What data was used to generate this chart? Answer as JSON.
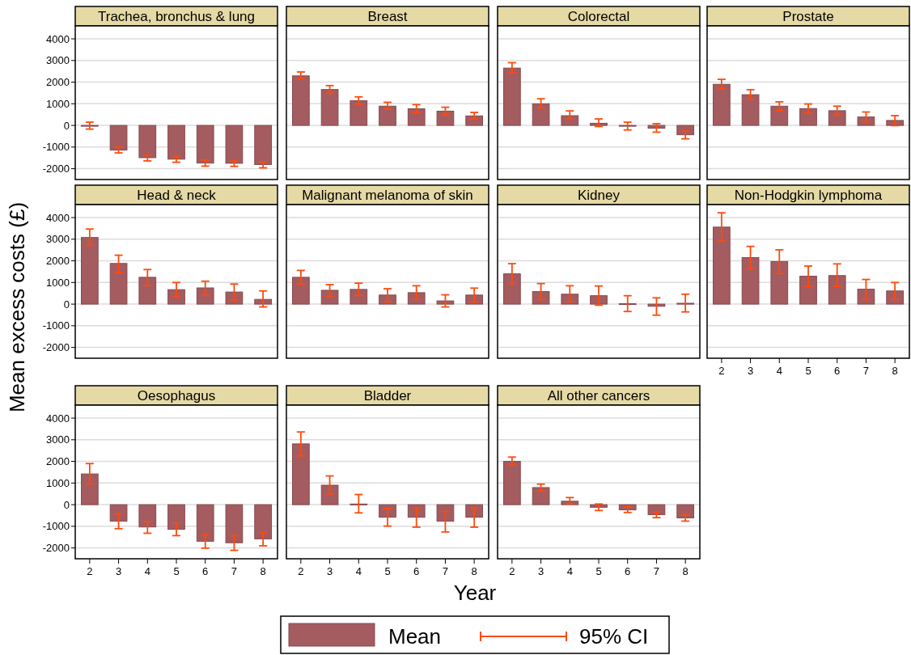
{
  "chart_data": [
    {
      "type": "bar",
      "title": "Trachea, bronchus & lung",
      "ylabel": "Mean excess costs (£)",
      "legend": "bottom",
      "annotations": [
        "95% CI"
      ],
      "categories": [
        "2",
        "3",
        "4",
        "5",
        "6",
        "7",
        "8"
      ],
      "series": [
        {
          "name": "Mean",
          "color": "#a45c61",
          "values": [
            -20,
            -1140,
            -1490,
            -1560,
            -1740,
            -1750,
            -1810
          ],
          "errors": [
            [
              -170,
              150
            ],
            [
              -1270,
              -1000
            ],
            [
              -1640,
              -1370
            ],
            [
              -1700,
              -1440
            ],
            [
              -1880,
              -1600
            ],
            [
              -1890,
              -1640
            ],
            [
              -1960,
              -1680
            ]
          ]
        }
      ],
      "ylim": [
        -2500,
        4600
      ],
      "yticks": [
        -2000,
        -1000,
        0,
        1000,
        2000,
        3000,
        4000
      ],
      "grid": "y",
      "tick_labels": "y"
    },
    {
      "type": "bar",
      "title": "Breast",
      "categories": [
        "2",
        "3",
        "4",
        "5",
        "6",
        "7",
        "8"
      ],
      "series": [
        {
          "color": "#a45c61",
          "values": [
            2290,
            1660,
            1140,
            890,
            770,
            660,
            440
          ],
          "errors": [
            [
              2150,
              2470
            ],
            [
              1490,
              1840
            ],
            [
              990,
              1320
            ],
            [
              750,
              1070
            ],
            [
              600,
              960
            ],
            [
              490,
              840
            ],
            [
              290,
              600
            ]
          ]
        }
      ],
      "ylim": [
        -2500,
        4600
      ],
      "yticks": [
        -2000,
        -1000,
        0,
        1000,
        2000,
        3000,
        4000
      ],
      "grid": "y",
      "tick_labels": false
    },
    {
      "type": "bar",
      "title": "Colorectal",
      "categories": [
        "2",
        "3",
        "4",
        "5",
        "6",
        "7",
        "8"
      ],
      "series": [
        {
          "color": "#a45c61",
          "values": [
            2650,
            1000,
            450,
            100,
            -10,
            -130,
            -430
          ],
          "errors": [
            [
              2430,
              2900
            ],
            [
              820,
              1230
            ],
            [
              290,
              670
            ],
            [
              -50,
              300
            ],
            [
              -210,
              150
            ],
            [
              -310,
              80
            ],
            [
              -620,
              -260
            ]
          ]
        }
      ],
      "ylim": [
        -2500,
        4600
      ],
      "yticks": [
        -2000,
        -1000,
        0,
        1000,
        2000,
        3000,
        4000
      ],
      "grid": "y",
      "tick_labels": false
    },
    {
      "type": "bar",
      "title": "Prostate",
      "categories": [
        "2",
        "3",
        "4",
        "5",
        "6",
        "7",
        "8"
      ],
      "series": [
        {
          "color": "#a45c61",
          "values": [
            1900,
            1420,
            890,
            780,
            680,
            390,
            230
          ],
          "errors": [
            [
              1700,
              2130
            ],
            [
              1210,
              1650
            ],
            [
              680,
              1090
            ],
            [
              570,
              990
            ],
            [
              480,
              890
            ],
            [
              180,
              620
            ],
            [
              -10,
              450
            ]
          ]
        }
      ],
      "ylim": [
        -2500,
        4600
      ],
      "yticks": [
        -2000,
        -1000,
        0,
        1000,
        2000,
        3000,
        4000
      ],
      "grid": "y",
      "tick_labels": false
    },
    {
      "type": "bar",
      "title": "Head & neck",
      "categories": [
        "2",
        "3",
        "4",
        "5",
        "6",
        "7",
        "8"
      ],
      "series": [
        {
          "color": "#a45c61",
          "values": [
            3080,
            1880,
            1240,
            670,
            750,
            560,
            220
          ],
          "errors": [
            [
              2720,
              3470
            ],
            [
              1460,
              2260
            ],
            [
              860,
              1600
            ],
            [
              350,
              1000
            ],
            [
              420,
              1060
            ],
            [
              190,
              930
            ],
            [
              -130,
              610
            ]
          ]
        }
      ],
      "ylim": [
        -2500,
        4600
      ],
      "yticks": [
        -2000,
        -1000,
        0,
        1000,
        2000,
        3000,
        4000
      ],
      "grid": "y",
      "tick_labels": "y"
    },
    {
      "type": "bar",
      "title": "Malignant melanoma of skin",
      "categories": [
        "2",
        "3",
        "4",
        "5",
        "6",
        "7",
        "8"
      ],
      "series": [
        {
          "color": "#a45c61",
          "values": [
            1240,
            640,
            680,
            420,
            530,
            150,
            420
          ],
          "errors": [
            [
              930,
              1560
            ],
            [
              360,
              900
            ],
            [
              400,
              970
            ],
            [
              110,
              710
            ],
            [
              220,
              850
            ],
            [
              -130,
              430
            ],
            [
              100,
              740
            ]
          ]
        }
      ],
      "ylim": [
        -2500,
        4600
      ],
      "yticks": [
        -2000,
        -1000,
        0,
        1000,
        2000,
        3000,
        4000
      ],
      "grid": "y",
      "tick_labels": false
    },
    {
      "type": "bar",
      "title": "Kidney",
      "categories": [
        "2",
        "3",
        "4",
        "5",
        "6",
        "7",
        "8"
      ],
      "series": [
        {
          "color": "#a45c61",
          "values": [
            1400,
            580,
            460,
            390,
            20,
            -100,
            40
          ],
          "errors": [
            [
              950,
              1870
            ],
            [
              210,
              950
            ],
            [
              110,
              850
            ],
            [
              -50,
              840
            ],
            [
              -340,
              390
            ],
            [
              -510,
              290
            ],
            [
              -360,
              460
            ]
          ]
        }
      ],
      "ylim": [
        -2500,
        4600
      ],
      "yticks": [
        -2000,
        -1000,
        0,
        1000,
        2000,
        3000,
        4000
      ],
      "grid": "y",
      "tick_labels": false
    },
    {
      "type": "bar",
      "title": "Non-Hodgkin lymphoma",
      "categories": [
        "2",
        "3",
        "4",
        "5",
        "6",
        "7",
        "8"
      ],
      "series": [
        {
          "color": "#a45c61",
          "values": [
            3560,
            2150,
            1970,
            1290,
            1320,
            690,
            610
          ],
          "errors": [
            [
              2920,
              4220
            ],
            [
              1630,
              2670
            ],
            [
              1420,
              2510
            ],
            [
              820,
              1760
            ],
            [
              820,
              1860
            ],
            [
              210,
              1140
            ],
            [
              210,
              1000
            ]
          ]
        }
      ],
      "ylim": [
        -2500,
        4600
      ],
      "yticks": [
        -2000,
        -1000,
        0,
        1000,
        2000,
        3000,
        4000
      ],
      "grid": "y",
      "tick_labels": "x"
    },
    {
      "type": "bar",
      "title": "Oesophagus",
      "categories": [
        "2",
        "3",
        "4",
        "5",
        "6",
        "7",
        "8"
      ],
      "series": [
        {
          "color": "#a45c61",
          "values": [
            1420,
            -760,
            -1030,
            -1140,
            -1690,
            -1760,
            -1580
          ],
          "errors": [
            [
              960,
              1900
            ],
            [
              -1110,
              -420
            ],
            [
              -1320,
              -780
            ],
            [
              -1430,
              -860
            ],
            [
              -2010,
              -1390
            ],
            [
              -2110,
              -1430
            ],
            [
              -1900,
              -1290
            ]
          ]
        }
      ],
      "ylim": [
        -2500,
        4600
      ],
      "yticks": [
        -2000,
        -1000,
        0,
        1000,
        2000,
        3000,
        4000
      ],
      "grid": "y"
    },
    {
      "type": "bar",
      "title": "Bladder",
      "xlabel": "Year",
      "categories": [
        "2",
        "3",
        "4",
        "5",
        "6",
        "7",
        "8"
      ],
      "series": [
        {
          "color": "#a45c61",
          "values": [
            2810,
            900,
            30,
            -580,
            -580,
            -760,
            -580
          ],
          "errors": [
            [
              2260,
              3360
            ],
            [
              500,
              1330
            ],
            [
              -380,
              470
            ],
            [
              -990,
              -190
            ],
            [
              -1040,
              -150
            ],
            [
              -1260,
              -310
            ],
            [
              -1040,
              -140
            ]
          ]
        }
      ],
      "ylim": [
        -2500,
        4600
      ],
      "yticks": [
        -2000,
        -1000,
        0,
        1000,
        2000,
        3000,
        4000
      ],
      "grid": "y",
      "tick_labels": "x"
    },
    {
      "type": "bar",
      "title": "All other cancers",
      "categories": [
        "2",
        "3",
        "4",
        "5",
        "6",
        "7",
        "8"
      ],
      "series": [
        {
          "color": "#a45c61",
          "values": [
            2000,
            790,
            160,
            -120,
            -240,
            -460,
            -610
          ],
          "errors": [
            [
              1830,
              2200
            ],
            [
              630,
              950
            ],
            [
              40,
              330
            ],
            [
              -270,
              30
            ],
            [
              -360,
              -100
            ],
            [
              -600,
              -340
            ],
            [
              -760,
              -480
            ]
          ]
        }
      ],
      "ylim": [
        -2500,
        4600
      ],
      "yticks": [
        -2000,
        -1000,
        0,
        1000,
        2000,
        3000,
        4000
      ],
      "grid": "y",
      "tick_labels": "x"
    }
  ]
}
